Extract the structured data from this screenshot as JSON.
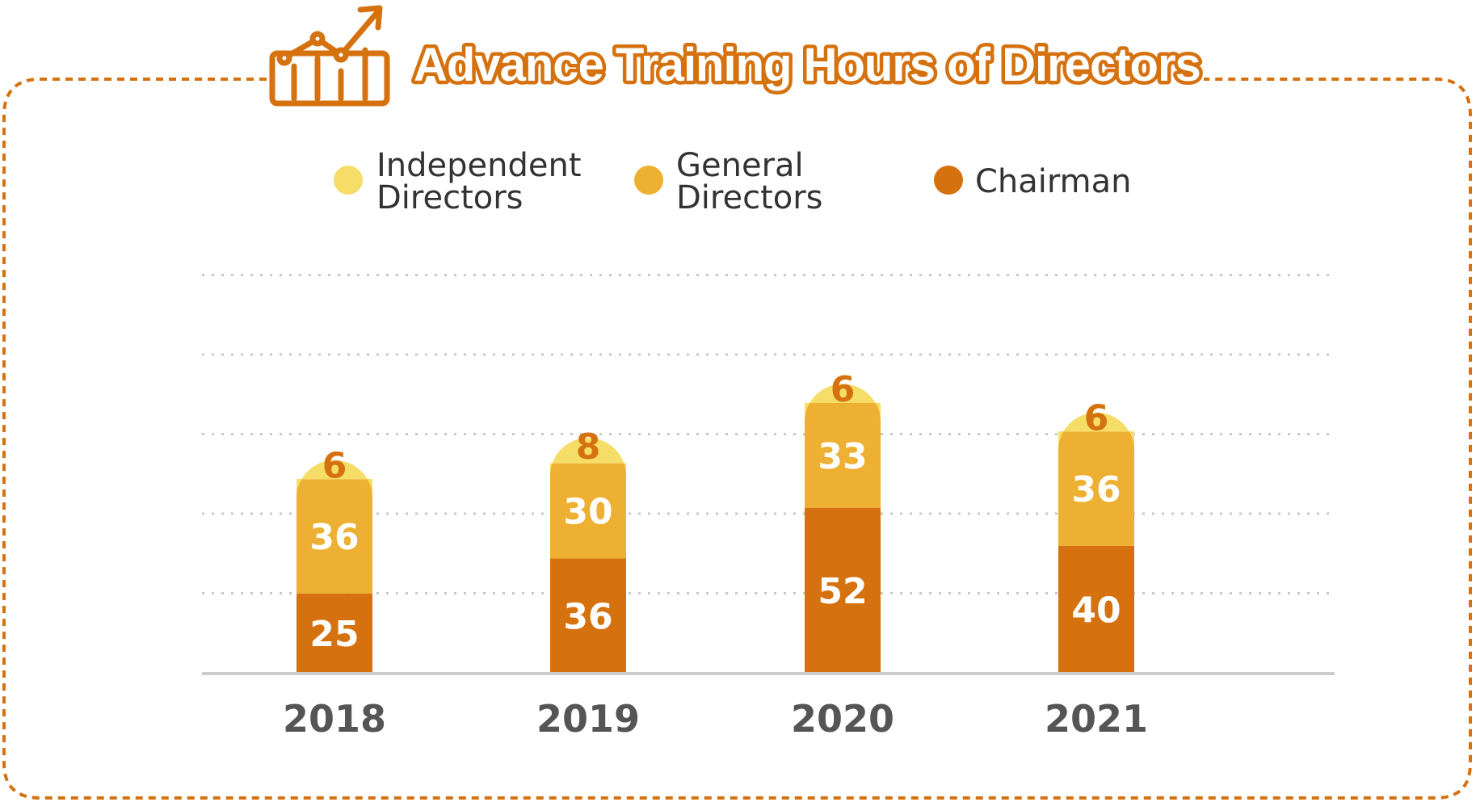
{
  "title": "Advance Training Hours of Directors",
  "colors": {
    "frame": "#D5720F",
    "chairman": "#D5720F",
    "general": "#EDB032",
    "independent": "#F5DD68",
    "value_text_light": "#FFFFFF",
    "value_text_top": "#D5720F",
    "grid": "#C8C8C8",
    "axis": "#CCCCCC"
  },
  "icon": "chart-growth-icon",
  "legend": [
    {
      "key": "independent",
      "line1": "Independent",
      "line2": "Directors"
    },
    {
      "key": "general",
      "line1": "General",
      "line2": "Directors"
    },
    {
      "key": "chairman",
      "line1": "Chairman",
      "line2": ""
    }
  ],
  "chart_data": {
    "type": "bar",
    "stacked": true,
    "title": "Advance Training Hours of Directors",
    "categories": [
      "2018",
      "2019",
      "2020",
      "2021"
    ],
    "series": [
      {
        "name": "Chairman",
        "key": "chairman",
        "values": [
          25,
          36,
          52,
          40
        ]
      },
      {
        "name": "General Directors",
        "key": "general",
        "values": [
          36,
          30,
          33,
          36
        ]
      },
      {
        "name": "Independent Directors",
        "key": "independent",
        "values": [
          6,
          8,
          6,
          6
        ]
      }
    ],
    "grid": true,
    "legend_position": "top"
  }
}
